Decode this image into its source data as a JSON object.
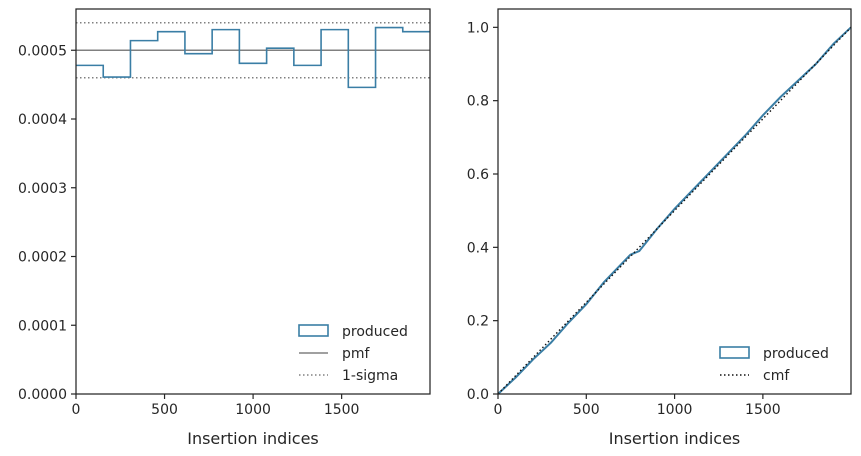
{
  "chart_data": [
    {
      "type": "line",
      "subtype": "step-histogram",
      "xlabel": "Insertion indices",
      "ylabel": "",
      "xlim": [
        0,
        1999
      ],
      "ylim": [
        0,
        0.00056
      ],
      "xticks": [
        0,
        500,
        1000,
        1500
      ],
      "xtick_labels": [
        "0",
        "500",
        "1000",
        "1500"
      ],
      "yticks": [
        0,
        0.0001,
        0.0002,
        0.0003,
        0.0004,
        0.0005
      ],
      "ytick_labels": [
        "0.0000",
        "0.0001",
        "0.0002",
        "0.0003",
        "0.0004",
        "0.0005"
      ],
      "grid": false,
      "legend_position": "lower right",
      "bin_edges": [
        0,
        153.8,
        307.5,
        461.3,
        615.1,
        768.8,
        922.6,
        1076.4,
        1230.2,
        1383.9,
        1537.7,
        1691.5,
        1845.2,
        1999
      ],
      "series": [
        {
          "name": "produced",
          "style": "step",
          "color": "#3a7ea5",
          "values": [
            0.000478,
            0.000461,
            0.000514,
            0.000527,
            0.000495,
            0.00053,
            0.000481,
            0.000503,
            0.000478,
            0.00053,
            0.000446,
            0.000533,
            0.000527
          ]
        },
        {
          "name": "pmf",
          "style": "solid",
          "color": "#808080",
          "value": 0.0005
        },
        {
          "name": "1-sigma",
          "style": "dotted",
          "color": "#808080",
          "values": [
            0.00046,
            0.00054
          ]
        }
      ],
      "legend": [
        "produced",
        "pmf",
        "1-sigma"
      ]
    },
    {
      "type": "line",
      "subtype": "cumulative",
      "xlabel": "Insertion indices",
      "ylabel": "",
      "xlim": [
        0,
        1999
      ],
      "ylim": [
        0,
        1.05
      ],
      "xticks": [
        0,
        500,
        1000,
        1500
      ],
      "xtick_labels": [
        "0",
        "500",
        "1000",
        "1500"
      ],
      "yticks": [
        0,
        0.2,
        0.4,
        0.6,
        0.8,
        1.0
      ],
      "ytick_labels": [
        "0.0",
        "0.2",
        "0.4",
        "0.6",
        "0.8",
        "1.0"
      ],
      "grid": false,
      "legend_position": "lower right",
      "series": [
        {
          "name": "produced",
          "style": "step",
          "color": "#3a7ea5",
          "x": [
            0,
            100,
            200,
            300,
            400,
            500,
            600,
            700,
            750,
            800,
            900,
            1000,
            1100,
            1200,
            1300,
            1400,
            1500,
            1600,
            1700,
            1800,
            1900,
            1999
          ],
          "y": [
            0,
            0.045,
            0.095,
            0.14,
            0.195,
            0.245,
            0.305,
            0.355,
            0.38,
            0.39,
            0.45,
            0.505,
            0.555,
            0.605,
            0.655,
            0.705,
            0.76,
            0.81,
            0.855,
            0.9,
            0.955,
            1.0
          ]
        },
        {
          "name": "cmf",
          "style": "dotted",
          "color": "#111111",
          "x": [
            0,
            1999
          ],
          "y": [
            0,
            1.0
          ]
        }
      ],
      "legend": [
        "produced",
        "cmf"
      ]
    }
  ]
}
